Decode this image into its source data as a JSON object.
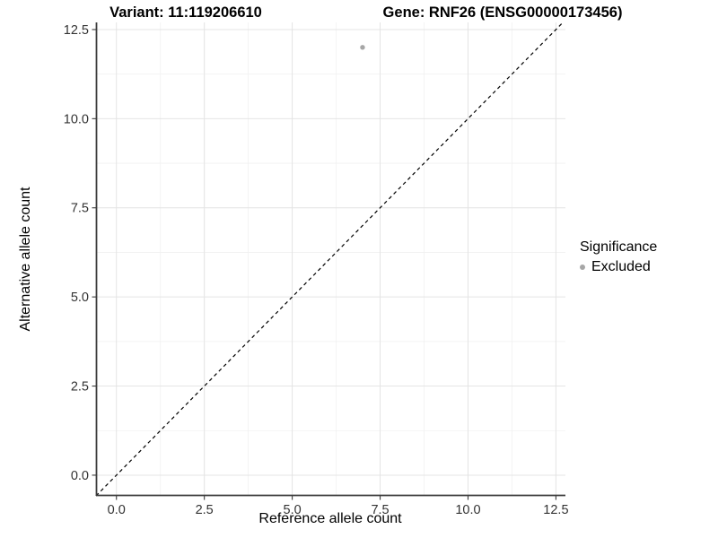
{
  "figure": {
    "titles": {
      "variant": "Variant: 11:119206610",
      "gene": "Gene: RNF26 (ENSG00000173456)"
    }
  },
  "axes": {
    "x_label": "Reference allele count",
    "y_label": "Alternative allele count"
  },
  "legend": {
    "title": "Significance",
    "items": [
      {
        "label": "Excluded",
        "color": "#a6a6a6"
      }
    ]
  },
  "chart_data": {
    "type": "scatter",
    "title": "Variant: 11:119206610 | Gene: RNF26 (ENSG00000173456)",
    "xlabel": "Reference allele count",
    "ylabel": "Alternative allele count",
    "series": [
      {
        "name": "Excluded",
        "color": "#a6a6a6",
        "points": [
          {
            "x": 7,
            "y": 12
          }
        ]
      }
    ],
    "reference_line": {
      "type": "identity",
      "slope": 1,
      "intercept": 0,
      "style": "dashed",
      "color": "#000000"
    },
    "xlim": [
      -0.58,
      12.77
    ],
    "ylim": [
      -0.58,
      12.7
    ],
    "x_major_ticks": [
      0,
      2.5,
      5,
      7.5,
      10,
      12.5
    ],
    "y_major_ticks": [
      0,
      2.5,
      5,
      7.5,
      10,
      12.5
    ],
    "x_tick_labels": [
      "0.0",
      "2.5",
      "5.0",
      "7.5",
      "10.0",
      "12.5"
    ],
    "y_tick_labels": [
      "0.0",
      "2.5",
      "5.0",
      "7.5",
      "10.0",
      "12.5"
    ],
    "x_minor_ticks": [
      1.25,
      3.75,
      6.25,
      8.75,
      11.25
    ],
    "y_minor_ticks": [
      1.25,
      3.75,
      6.25,
      8.75,
      11.25
    ],
    "grid": true,
    "legend_position": "right",
    "colors": {
      "axis_line": "#3c3c3c",
      "tick_label": "#333333",
      "major_grid": "#e4e4e4",
      "minor_grid": "#f1f1f1",
      "panel_background": "#ffffff"
    }
  }
}
